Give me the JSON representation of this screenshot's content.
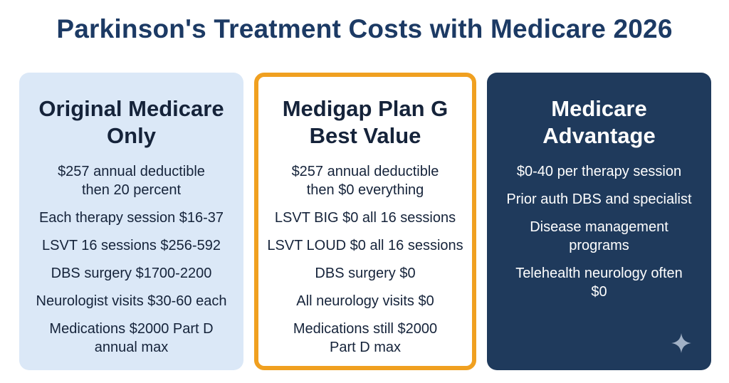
{
  "title": "Parkinson's Treatment Costs with Medicare 2026",
  "cards": [
    {
      "title_lines": [
        "Original Medicare",
        "Only"
      ],
      "items": [
        [
          "$257 annual deductible",
          "then 20 percent"
        ],
        [
          "Each therapy session $16-37"
        ],
        [
          "LSVT 16 sessions $256-592"
        ],
        [
          "DBS surgery $1700-2200"
        ],
        [
          "Neurologist visits $30-60 each"
        ],
        [
          "Medications $2000 Part D",
          "annual max"
        ]
      ]
    },
    {
      "title_lines": [
        "Medigap Plan G",
        "Best Value"
      ],
      "items": [
        [
          "$257 annual deductible",
          "then $0 everything"
        ],
        [
          "LSVT BIG $0 all 16 sessions"
        ],
        [
          "LSVT LOUD $0 all 16 sessions"
        ],
        [
          "DBS surgery $0"
        ],
        [
          "All neurology visits $0"
        ],
        [
          "Medications still $2000",
          "Part D max"
        ]
      ]
    },
    {
      "title_lines": [
        "Medicare",
        "Advantage"
      ],
      "items": [
        [
          "$0-40 per therapy session"
        ],
        [
          "Prior auth DBS and specialist"
        ],
        [
          "Disease management",
          "programs"
        ],
        [
          "Telehealth neurology often",
          "$0"
        ]
      ]
    }
  ],
  "colors": {
    "title": "#1c3a64",
    "original_bg": "#dbe8f7",
    "medigap_border": "#f0a020",
    "advantage_bg": "#1f3a5c"
  },
  "icons": {
    "corner": "sparkle-icon"
  }
}
